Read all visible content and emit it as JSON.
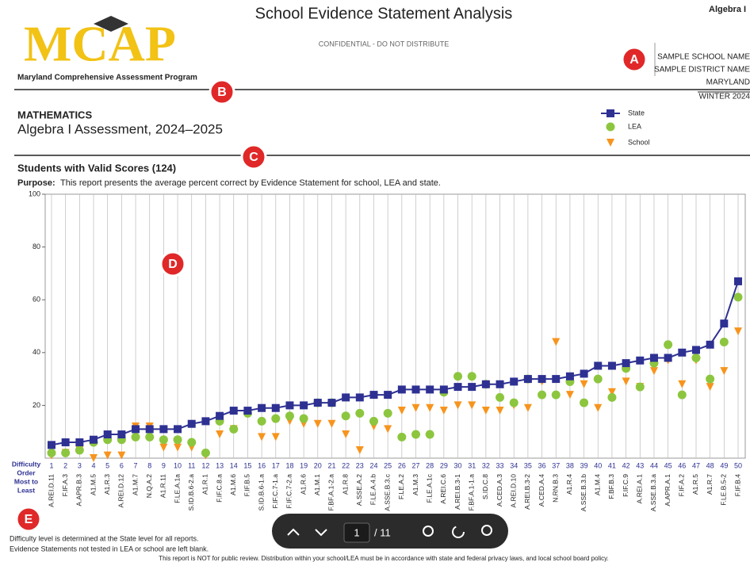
{
  "header": {
    "logo": "MCAP",
    "logo_subtitle": "Maryland Comprehensive Assessment Program",
    "title": "School Evidence Statement Analysis",
    "confidential": "CONFIDENTIAL - DO NOT DISTRIBUTE",
    "corner": "Algebra I",
    "school": "SAMPLE SCHOOL NAME",
    "district": "SAMPLE DISTRICT NAME",
    "state": "MARYLAND",
    "season": "WINTER 2024"
  },
  "subject": "MATHEMATICS",
  "assessment": "Algebra I Assessment, 2024–2025",
  "section_title": "Students with Valid Scores (124)",
  "purpose_label": "Purpose:",
  "purpose": "This report presents the average percent correct by Evidence Statement for school, LEA and state.",
  "callouts": [
    "A",
    "B",
    "C",
    "D",
    "E"
  ],
  "chart_data": {
    "type": "scatter",
    "x_axis_label": "Difficulty Order Most to Least",
    "x": [
      1,
      2,
      3,
      4,
      5,
      6,
      7,
      8,
      9,
      10,
      11,
      12,
      13,
      14,
      15,
      16,
      17,
      18,
      19,
      20,
      21,
      22,
      23,
      24,
      25,
      26,
      27,
      28,
      29,
      30,
      31,
      32,
      33,
      34,
      35,
      36,
      37,
      38,
      39,
      40,
      41,
      42,
      43,
      44,
      45,
      46,
      47,
      48,
      49,
      50
    ],
    "categories": [
      "A.REI.D.11",
      "F.IF.A.3",
      "A.APR.B.3",
      "A1.M.5",
      "A1.R.3",
      "A.REI.D.12",
      "A1.M.7",
      "N.Q.A.2",
      "A1.R.11",
      "F.LE.A.1a",
      "S.ID.B.6-2.a",
      "A1.R.1",
      "F.IF.C.8.a",
      "A1.M.6",
      "F.IF.B.5",
      "S.ID.B.6-1.a",
      "F.IF.C.7-1.a",
      "F.IF.C.7-2.a",
      "A1.R.6",
      "A1.M.1",
      "F.BF.A.1-2.a",
      "A1.R.8",
      "A.SSE.A.2",
      "F.LE.A.4.b",
      "A.SSE.B.3.c",
      "F.LE.A.2",
      "A1.M.3",
      "F.LE.A.1c",
      "A.REI.C.6",
      "A.REI.B.3-1",
      "F.BF.A.1-1.a",
      "S.ID.C.8",
      "A.CED.A.3",
      "A.REI.D.10",
      "A.REI.B.3-2",
      "A.CED.A.4",
      "N.RN.B.3",
      "A1.R.4",
      "A.SSE.B.3.b",
      "A1.M.4",
      "F.BF.B.3",
      "F.IF.C.9",
      "A.REI.A.1",
      "A.SSE.B.3.a",
      "A.APR.A.1",
      "F.IF.A.2",
      "A1.R.5",
      "A1.R.7",
      "F.LE.B.5-2",
      "F.IF.B.4"
    ],
    "series": [
      {
        "name": "State",
        "color": "#2e3192",
        "marker": "square",
        "values": [
          5,
          6,
          6,
          7,
          9,
          9,
          11,
          11,
          11,
          11,
          13,
          14,
          16,
          18,
          18,
          19,
          19,
          20,
          20,
          21,
          21,
          23,
          23,
          24,
          24,
          26,
          26,
          26,
          26,
          27,
          27,
          28,
          28,
          29,
          30,
          30,
          30,
          31,
          32,
          35,
          35,
          36,
          37,
          38,
          38,
          40,
          41,
          43,
          51,
          67
        ]
      },
      {
        "name": "LEA",
        "color": "#8cc63f",
        "marker": "circle",
        "values": [
          2,
          2,
          3,
          6,
          7,
          7,
          8,
          8,
          7,
          7,
          6,
          2,
          14,
          11,
          17,
          14,
          15,
          16,
          15,
          21,
          21,
          16,
          17,
          14,
          17,
          8,
          9,
          9,
          25,
          31,
          31,
          28,
          23,
          21,
          30,
          24,
          24,
          29,
          21,
          30,
          23,
          34,
          27,
          36,
          43,
          24,
          38,
          30,
          44,
          61
        ]
      },
      {
        "name": "School",
        "color": "#f7941d",
        "marker": "triangle",
        "values": [
          1,
          2,
          3,
          0,
          1,
          1,
          12,
          12,
          4,
          4,
          4,
          1,
          9,
          11,
          17,
          8,
          8,
          14,
          13,
          13,
          13,
          9,
          3,
          12,
          11,
          18,
          19,
          19,
          18,
          20,
          20,
          18,
          18,
          20,
          19,
          29,
          44,
          24,
          28,
          19,
          25,
          29,
          27,
          33,
          37,
          28,
          37,
          27,
          33,
          48
        ]
      }
    ],
    "ylim": [
      0,
      100
    ],
    "yticks": [
      20,
      40,
      60,
      80,
      100
    ],
    "grid": true
  },
  "notes": [
    "Difficulty level is determined at the State level for all reports.",
    "Evidence Statements not tested in LEA or school are left blank."
  ],
  "disclaimer": "This report is NOT for public review. Distribution within your school/LEA must be in accordance with state and federal privacy laws, and local school board policy.",
  "toolbar": {
    "page": "1",
    "total": "/ 11"
  }
}
